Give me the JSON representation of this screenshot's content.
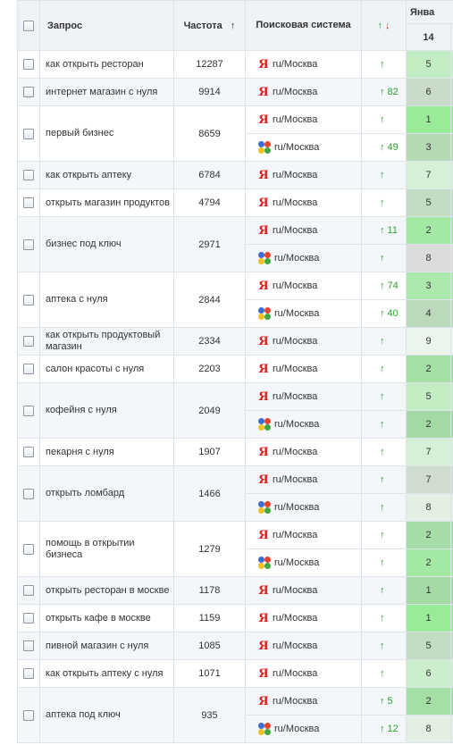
{
  "header": {
    "query": "Запрос",
    "freq": "Частота",
    "sort_icon": "↑",
    "engine": "Поисковая система",
    "change_up": "↑",
    "change_down": "↓",
    "month": "Янва",
    "day": "14"
  },
  "engines": {
    "yandex": {
      "icon": "yandex-icon",
      "glyph": "Я",
      "region": "ru/Москва"
    },
    "google": {
      "icon": "google-icon",
      "region": "ru/Москва"
    }
  },
  "colors": {
    "pos_1_2": "#8fe08f",
    "pos_3_4": "#b7e4b7",
    "pos_5_6": "#cbeacb",
    "pos_7_8": "#d9ecd9",
    "pos_9": "#ebf3eb",
    "pos_gray": "#d8dbd8"
  },
  "rows": [
    {
      "query": "как открыть ресторан",
      "freq": "12287",
      "engines": [
        {
          "type": "yandex",
          "change": "↑",
          "pos": "5",
          "bg": "#c3eec3"
        }
      ]
    },
    {
      "query": "интернет магазин с нуля",
      "freq": "9914",
      "engines": [
        {
          "type": "yandex",
          "change": "↑ 82",
          "pos": "6",
          "bg": "#c9dcc9"
        }
      ]
    },
    {
      "query": "первый бизнес",
      "freq": "8659",
      "engines": [
        {
          "type": "yandex",
          "change": "↑",
          "pos": "1",
          "bg": "#99ea99"
        },
        {
          "type": "google",
          "change": "↑ 49",
          "pos": "3",
          "bg": "#b4d9b4"
        }
      ]
    },
    {
      "query": "как открыть аптеку",
      "freq": "6784",
      "engines": [
        {
          "type": "yandex",
          "change": "↑",
          "pos": "7",
          "bg": "#d5f0d5"
        }
      ]
    },
    {
      "query": "открыть магазин продуктов",
      "freq": "4794",
      "engines": [
        {
          "type": "yandex",
          "change": "↑",
          "pos": "5",
          "bg": "#c3ddc3"
        }
      ]
    },
    {
      "query": "бизнес под ключ",
      "freq": "2971",
      "engines": [
        {
          "type": "yandex",
          "change": "↑ 11",
          "pos": "2",
          "bg": "#a3e8a3"
        },
        {
          "type": "google",
          "change": "↑",
          "pos": "8",
          "bg": "#dcdcdc"
        }
      ]
    },
    {
      "query": "аптека с нуля",
      "freq": "2844",
      "engines": [
        {
          "type": "yandex",
          "change": "↑ 74",
          "pos": "3",
          "bg": "#ade8ad"
        },
        {
          "type": "google",
          "change": "↑ 40",
          "pos": "4",
          "bg": "#bcd9bc"
        }
      ]
    },
    {
      "query": "как открыть продуктовый магазин",
      "freq": "2334",
      "engines": [
        {
          "type": "yandex",
          "change": "↑",
          "pos": "9",
          "bg": "#ebf5eb"
        }
      ]
    },
    {
      "query": "салон красоты с нуля",
      "freq": "2203",
      "engines": [
        {
          "type": "yandex",
          "change": "↑",
          "pos": "2",
          "bg": "#a4dfa4"
        }
      ]
    },
    {
      "query": "кофейня с нуля",
      "freq": "2049",
      "engines": [
        {
          "type": "yandex",
          "change": "↑",
          "pos": "5",
          "bg": "#c3eec3"
        },
        {
          "type": "google",
          "change": "↑",
          "pos": "2",
          "bg": "#a3d9a3"
        }
      ]
    },
    {
      "query": "пекарня с нуля",
      "freq": "1907",
      "engines": [
        {
          "type": "yandex",
          "change": "↑",
          "pos": "7",
          "bg": "#d5f0d5"
        }
      ]
    },
    {
      "query": "открыть ломбард",
      "freq": "1466",
      "engines": [
        {
          "type": "yandex",
          "change": "↑",
          "pos": "7",
          "bg": "#d0dcd0"
        },
        {
          "type": "google",
          "change": "↑",
          "pos": "8",
          "bg": "#e3efe3"
        }
      ]
    },
    {
      "query": "помощь в открытии бизнеса",
      "freq": "1279",
      "engines": [
        {
          "type": "yandex",
          "change": "↑",
          "pos": "2",
          "bg": "#a6dca6"
        },
        {
          "type": "google",
          "change": "↑",
          "pos": "2",
          "bg": "#a3e8a3"
        }
      ]
    },
    {
      "query": "открыть ресторан в москве",
      "freq": "1178",
      "engines": [
        {
          "type": "yandex",
          "change": "↑",
          "pos": "1",
          "bg": "#a3d9a3"
        }
      ]
    },
    {
      "query": "открыть кафе в москве",
      "freq": "1159",
      "engines": [
        {
          "type": "yandex",
          "change": "↑",
          "pos": "1",
          "bg": "#99ea99"
        }
      ]
    },
    {
      "query": "пивной магазин с нуля",
      "freq": "1085",
      "engines": [
        {
          "type": "yandex",
          "change": "↑",
          "pos": "5",
          "bg": "#c3ddc3"
        }
      ]
    },
    {
      "query": "как открыть аптеку с нуля",
      "freq": "1071",
      "engines": [
        {
          "type": "yandex",
          "change": "↑",
          "pos": "6",
          "bg": "#cdeecd"
        }
      ]
    },
    {
      "query": "аптека под ключ",
      "freq": "935",
      "engines": [
        {
          "type": "yandex",
          "change": "↑ 5",
          "pos": "2",
          "bg": "#a4dfa4"
        },
        {
          "type": "google",
          "change": "↑ 12",
          "pos": "8",
          "bg": "#e3efe3"
        }
      ]
    }
  ]
}
